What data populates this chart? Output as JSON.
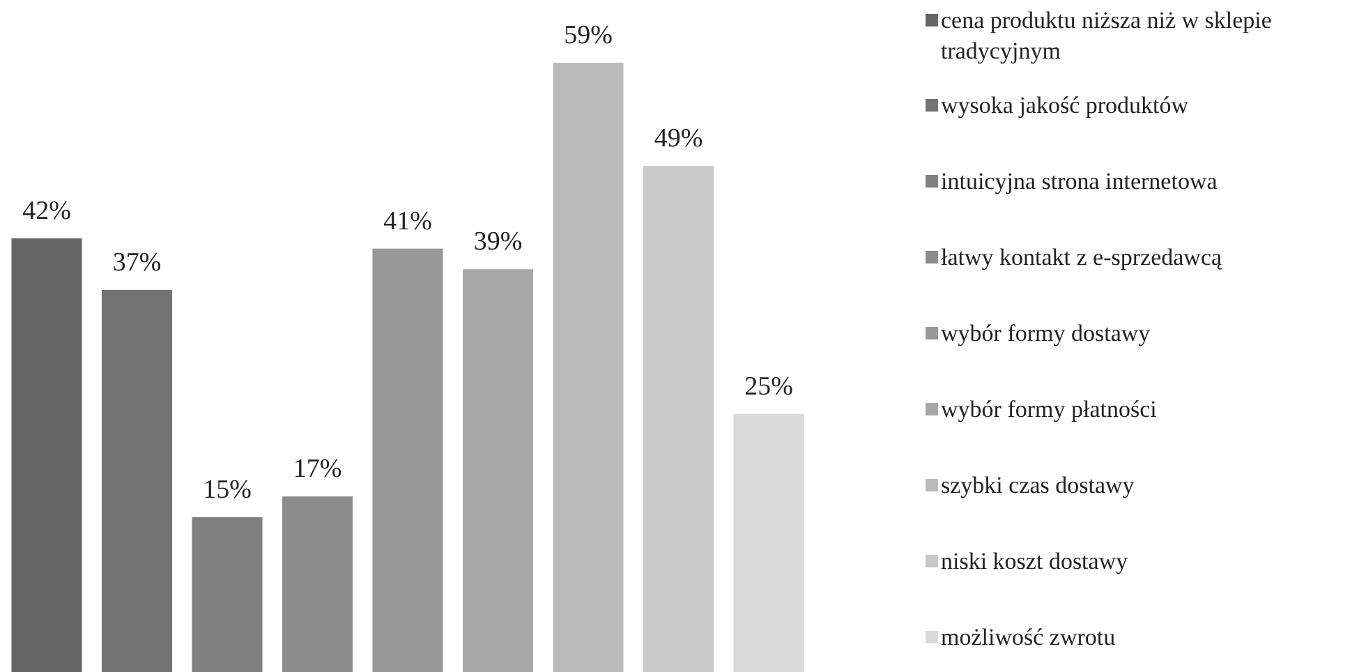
{
  "chart_data": {
    "type": "bar",
    "categories": [
      null
    ],
    "legend": "right",
    "series": [
      {
        "name": "cena produktu niższa niż w sklepie tradycyjnym",
        "color": "#666666",
        "values": [
          42
        ],
        "value_labels": [
          "42%"
        ]
      },
      {
        "name": "wysoka jakość produktów",
        "color": "#737373",
        "values": [
          37
        ],
        "value_labels": [
          "37%"
        ]
      },
      {
        "name": "intuicyjna strona internetowa",
        "color": "#808080",
        "values": [
          15
        ],
        "value_labels": [
          "15%"
        ]
      },
      {
        "name": "łatwy kontakt z e-sprzedawcą",
        "color": "#8c8c8c",
        "values": [
          17
        ],
        "value_labels": [
          "17%"
        ]
      },
      {
        "name": "wybór formy dostawy",
        "color": "#989898",
        "values": [
          41
        ],
        "value_labels": [
          "41%"
        ]
      },
      {
        "name": "wybór formy płatności",
        "color": "#a8a8a8",
        "values": [
          39
        ],
        "value_labels": [
          "39%"
        ]
      },
      {
        "name": "szybki czas dostawy",
        "color": "#bababa",
        "values": [
          59
        ],
        "value_labels": [
          "59%"
        ]
      },
      {
        "name": "niski koszt dostawy",
        "color": "#c9c9c9",
        "values": [
          49
        ],
        "value_labels": [
          "49%"
        ]
      },
      {
        "name": "możliwość zwrotu",
        "color": "#d9d9d9",
        "values": [
          25
        ],
        "value_labels": [
          "25%"
        ]
      }
    ]
  }
}
